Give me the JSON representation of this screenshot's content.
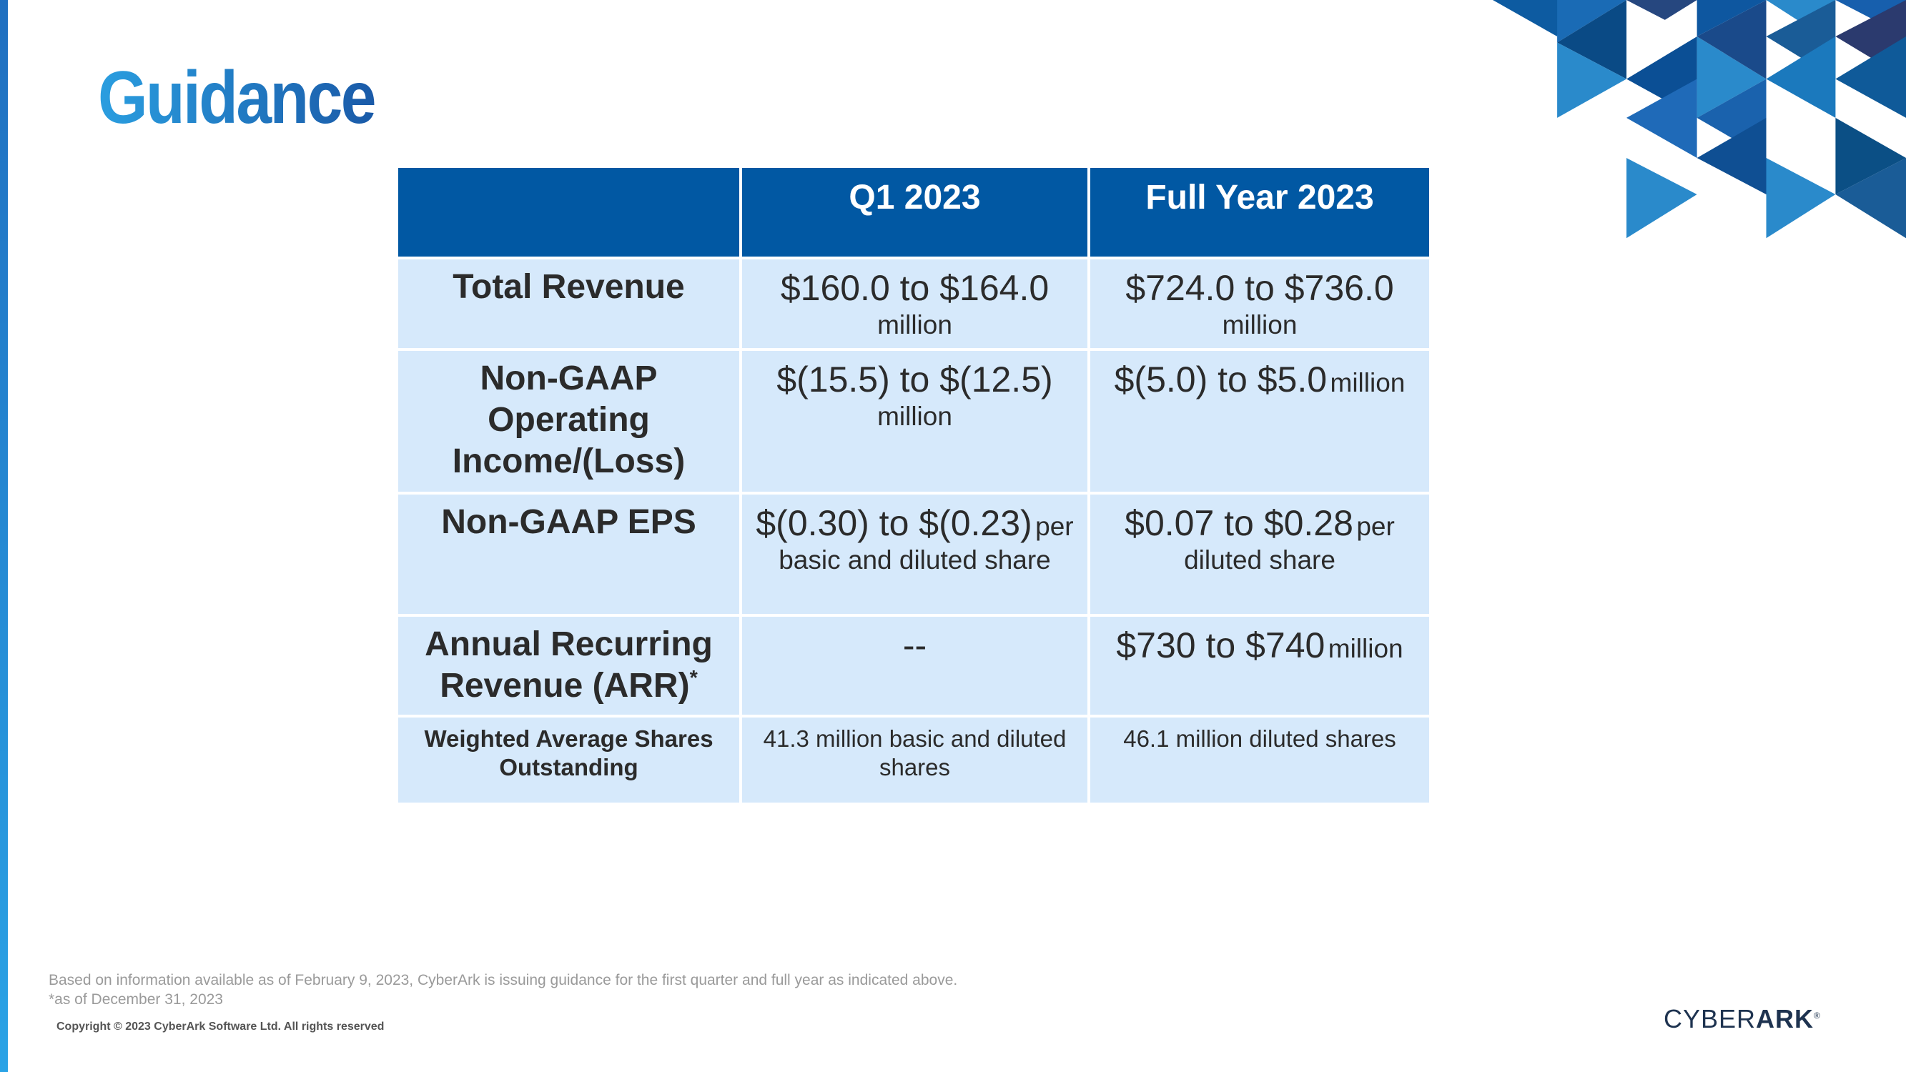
{
  "header": {
    "title": "Guidance"
  },
  "table": {
    "columns": [
      "Q1 2023",
      "Full Year 2023"
    ],
    "rows": [
      {
        "label": "Total Revenue",
        "cells": [
          {
            "main": "$160.0 to $164.0",
            "sub": "million"
          },
          {
            "main": "$724.0 to $736.0",
            "sub": "million"
          }
        ]
      },
      {
        "label": "Non-GAAP Operating Income/(Loss)",
        "cells": [
          {
            "main": "$(15.5) to $(12.5)",
            "sub": "million"
          },
          {
            "main": "$(5.0) to $5.0",
            "sub": "million"
          }
        ]
      },
      {
        "label": "Non-GAAP EPS",
        "cells": [
          {
            "main": "$(0.30) to $(0.23)",
            "sub": "per basic and diluted share"
          },
          {
            "main": "$0.07 to $0.28",
            "sub": "per diluted share"
          }
        ]
      },
      {
        "label": "Annual Recurring Revenue (ARR)",
        "label_sup": "*",
        "cells": [
          {
            "main": "--"
          },
          {
            "main": "$730 to $740",
            "sub": "million"
          }
        ]
      },
      {
        "label": "Weighted Average Shares Outstanding",
        "cells": [
          {
            "main": "41.3 million basic and diluted shares"
          },
          {
            "main": "46.1 million diluted shares"
          }
        ]
      }
    ]
  },
  "footer": {
    "notes": [
      "Based on information available as of February 9, 2023, CyberArk is issuing guidance for the first quarter and full year as indicated above.",
      "*as of December 31, 2023"
    ],
    "copyright": "Copyright © 2023 CyberArk Software Ltd. All rights reserved"
  },
  "logo": {
    "light": "CYBER",
    "bold": "ARK",
    "mark": "®"
  }
}
